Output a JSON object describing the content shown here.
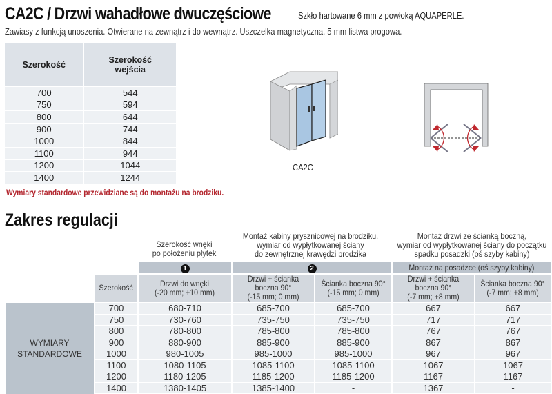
{
  "header": {
    "title": "CA2C / Drzwi wahadłowe dwuczęściowe",
    "tagline": "Szkło hartowane 6 mm z powłoką AQUAPERLE.",
    "description": "Zawiasy z funkcją unoszenia. Otwierane na zewnątrz i do wewnątrz. Uszczelka magnetyczna. 5 mm listwa progowa."
  },
  "width_table": {
    "columns": [
      "Szerokość",
      "Szerokość wejścia"
    ],
    "rows": [
      [
        "700",
        "544"
      ],
      [
        "750",
        "594"
      ],
      [
        "800",
        "644"
      ],
      [
        "900",
        "744"
      ],
      [
        "1000",
        "844"
      ],
      [
        "1100",
        "944"
      ],
      [
        "1200",
        "1044"
      ],
      [
        "1400",
        "1244"
      ]
    ]
  },
  "note": "Wymiary standardowe przewidziane są do montażu na brodziku.",
  "illustration": {
    "label": "CA2C",
    "colors": {
      "wall": "#d4d6d9",
      "glass": "#a9c6e2",
      "arrow": "#c0282e"
    }
  },
  "section_title": "Zakres regulacji",
  "regulation": {
    "groups": [
      {
        "caption": "Szerokość wnęki\npo położeniu płytek",
        "band": "1"
      },
      {
        "caption": "Montaż kabiny prysznicowej na brodziku,\nwymiar od wypłytkowanej ściany\ndo zewnętrznej krawędzi brodzika",
        "band": "2"
      },
      {
        "caption": "Montaż drzwi ze ścianką boczną,\nwymiar od wypłytkowanej ściany do początku\nspadku posadzki (oś szyby kabiny)",
        "band": "Montaż na posadzce (oś szyby kabiny)"
      }
    ],
    "columns": [
      "Szerokość",
      "Drzwi do wnęki\n(-20 mm; +10 mm)",
      "Drzwi + ścianka boczna 90°\n(-15 mm; 0 mm)",
      "Ścianka boczna 90°\n(-15 mm; 0 mm)",
      "Drzwi + ścianka boczna 90°\n(-7 mm; +8 mm)",
      "Ścianka boczna 90°\n(-7 mm; +8 mm)"
    ],
    "row_label": "WYMIARY\nSTANDARDOWE",
    "rows": [
      [
        "700",
        "680-710",
        "685-700",
        "685-700",
        "667",
        "667"
      ],
      [
        "750",
        "730-760",
        "735-750",
        "735-750",
        "717",
        "717"
      ],
      [
        "800",
        "780-800",
        "785-800",
        "785-800",
        "767",
        "767"
      ],
      [
        "900",
        "880-900",
        "885-900",
        "885-900",
        "867",
        "867"
      ],
      [
        "1000",
        "980-1005",
        "985-1000",
        "985-1000",
        "967",
        "967"
      ],
      [
        "1100",
        "1080-1105",
        "1085-1100",
        "1085-1100",
        "1067",
        "1067"
      ],
      [
        "1200",
        "1180-1205",
        "1185-1200",
        "1185-1200",
        "1167",
        "1167"
      ],
      [
        "1400",
        "1380-1405",
        "1385-1400",
        "-",
        "1367",
        "-"
      ]
    ]
  }
}
